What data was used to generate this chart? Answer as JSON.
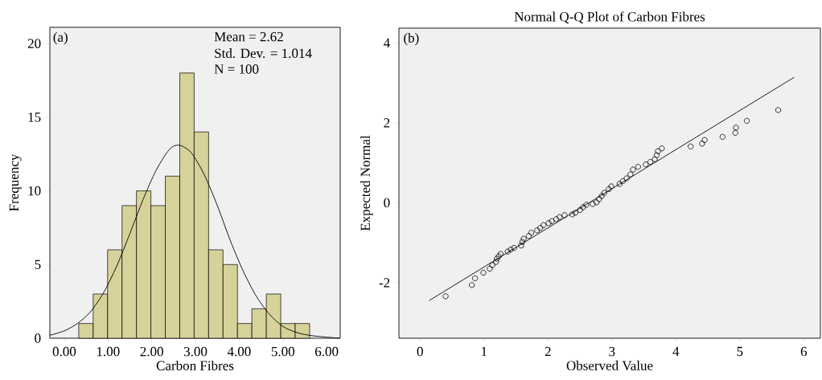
{
  "chart_data": [
    {
      "type": "histogram",
      "xlabel": "Carbon Fibres",
      "ylabel": "Frequency",
      "color": "#d6d29a",
      "bins": [
        0.33,
        0.66,
        0.99,
        1.32,
        1.65,
        1.98,
        2.31,
        2.64,
        2.97,
        3.3,
        3.63,
        3.96,
        4.29,
        4.62,
        4.95,
        5.28,
        5.61
      ],
      "values": [
        1,
        3,
        6,
        9,
        10,
        9,
        11,
        18,
        14,
        6,
        5,
        1,
        2,
        3,
        1,
        1
      ],
      "series": [
        {
          "type": "line",
          "color": "#000000",
          "x": [
            -0.33,
            0,
            0.3,
            0.6,
            0.9,
            1.2,
            1.5,
            1.8,
            2.1,
            2.4,
            2.62,
            2.9,
            3.2,
            3.5,
            3.8,
            4.1,
            4.4,
            4.7,
            5.0,
            5.3,
            5.6,
            5.9,
            6.3
          ],
          "values": [
            0.2,
            0.5,
            1.0,
            1.8,
            3.1,
            4.9,
            7.1,
            9.4,
            11.4,
            12.8,
            13.1,
            12.6,
            11.1,
            9.0,
            6.6,
            4.5,
            2.8,
            1.6,
            0.8,
            0.4,
            0.2,
            0.1,
            0.0
          ]
        }
      ],
      "xlim": [
        -0.33,
        6.31
      ],
      "ylim": [
        0,
        21.1
      ],
      "xticks": [
        {
          "value": 0,
          "label": "0.00"
        },
        {
          "value": 1,
          "label": "1.00"
        },
        {
          "value": 2,
          "label": "2.00"
        },
        {
          "value": 3,
          "label": "3.00"
        },
        {
          "value": 4,
          "label": "4.00"
        },
        {
          "value": 5,
          "label": "5.00"
        },
        {
          "value": 6,
          "label": "6.00"
        }
      ],
      "yticks": [
        0,
        5,
        10,
        15,
        20
      ],
      "annotations": [
        "(a)",
        "Mean = 2.62",
        "Std. Dev. = 1.014",
        "N = 100"
      ]
    },
    {
      "type": "scatter",
      "title": "Normal Q-Q Plot of Carbon Fibres",
      "xlabel": "Observed Value",
      "ylabel": "Expected Normal",
      "series": [
        {
          "type": "scatter",
          "marker": "circle",
          "color": "#000000",
          "x": [
            0.4,
            0.81,
            0.86,
            0.99,
            1.09,
            1.13,
            1.19,
            1.2,
            1.23,
            1.26,
            1.37,
            1.42,
            1.47,
            1.58,
            1.6,
            1.62,
            1.7,
            1.74,
            1.83,
            1.88,
            1.93,
            2.01,
            2.06,
            2.13,
            2.18,
            2.26,
            2.38,
            2.43,
            2.5,
            2.55,
            2.6,
            2.7,
            2.76,
            2.8,
            2.84,
            2.88,
            2.95,
            2.99,
            3.12,
            3.17,
            3.23,
            3.29,
            3.33,
            3.41,
            3.53,
            3.6,
            3.67,
            3.7,
            3.72,
            3.78,
            4.23,
            4.41,
            4.45,
            4.73,
            4.93,
            4.94,
            5.11,
            5.6
          ],
          "values": [
            -2.34,
            -2.06,
            -1.89,
            -1.75,
            -1.65,
            -1.56,
            -1.48,
            -1.4,
            -1.34,
            -1.28,
            -1.22,
            -1.17,
            -1.13,
            -1.07,
            -0.98,
            -0.9,
            -0.83,
            -0.75,
            -0.69,
            -0.63,
            -0.56,
            -0.51,
            -0.46,
            -0.41,
            -0.36,
            -0.31,
            -0.29,
            -0.25,
            -0.18,
            -0.11,
            -0.05,
            -0.03,
            0.01,
            0.09,
            0.17,
            0.25,
            0.34,
            0.41,
            0.47,
            0.54,
            0.61,
            0.71,
            0.83,
            0.9,
            0.96,
            1.02,
            1.09,
            1.19,
            1.29,
            1.36,
            1.41,
            1.48,
            1.57,
            1.65,
            1.75,
            1.88,
            2.05,
            2.32
          ]
        },
        {
          "type": "line",
          "marker": "none",
          "color": "#000000",
          "x": [
            0.14,
            5.85
          ],
          "values": [
            -2.45,
            3.14
          ]
        }
      ],
      "xlim": [
        -0.33,
        6.26
      ],
      "ylim": [
        -3.39,
        4.37
      ],
      "xticks": [
        0,
        1,
        2,
        3,
        4,
        5,
        6
      ],
      "yticks": [
        -2,
        0,
        2,
        4
      ],
      "annotations": [
        "(b)"
      ]
    }
  ]
}
